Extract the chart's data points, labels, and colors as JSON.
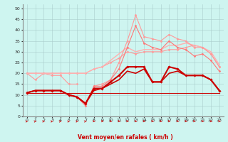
{
  "x": [
    0,
    1,
    2,
    3,
    4,
    5,
    6,
    7,
    8,
    9,
    10,
    11,
    12,
    13,
    14,
    15,
    16,
    17,
    18,
    19,
    20,
    21,
    22,
    23
  ],
  "background_color": "#cef5f0",
  "grid_color": "#aacccc",
  "xlabel": "Vent moyen/en rafales ( km/h )",
  "xlabel_color": "#cc0000",
  "ylim": [
    0,
    52
  ],
  "xlim": [
    -0.5,
    23.5
  ],
  "yticks": [
    0,
    5,
    10,
    15,
    20,
    25,
    30,
    35,
    40,
    45,
    50
  ],
  "arrow_angles": [
    45,
    45,
    45,
    45,
    45,
    45,
    45,
    45,
    0,
    0,
    0,
    0,
    0,
    0,
    0,
    0,
    0,
    0,
    0,
    0,
    0,
    0,
    0,
    0
  ],
  "series": [
    {
      "values": [
        20,
        17,
        20,
        19,
        19,
        15,
        15,
        null,
        null,
        null,
        null,
        null,
        null,
        null,
        null,
        null,
        null,
        null,
        null,
        null,
        null,
        null,
        null,
        null
      ],
      "color": "#ff9999",
      "linewidth": 0.8,
      "marker": "D",
      "markersize": 1.5
    },
    {
      "values": [
        20,
        20,
        20,
        20,
        20,
        20,
        20,
        20,
        22,
        23,
        25,
        27,
        30,
        29,
        30,
        30,
        30,
        31,
        31,
        32,
        33,
        32,
        29,
        23
      ],
      "color": "#ff9999",
      "linewidth": 0.8,
      "marker": "D",
      "markersize": 1.5
    },
    {
      "values": [
        20,
        20,
        20,
        20,
        20,
        20,
        20,
        20,
        22,
        23,
        26,
        29,
        32,
        30,
        31,
        31,
        31,
        33,
        33,
        34,
        33,
        32,
        30,
        24
      ],
      "color": "#ffb0b0",
      "linewidth": 1.0,
      "marker": null,
      "markersize": 0
    },
    {
      "values": [
        11,
        12,
        12,
        12,
        12,
        10,
        9,
        5,
        14,
        15,
        17,
        25,
        35,
        47,
        37,
        36,
        35,
        38,
        36,
        35,
        32,
        32,
        29,
        23
      ],
      "color": "#ff9999",
      "linewidth": 0.8,
      "marker": "D",
      "markersize": 1.5
    },
    {
      "values": [
        11,
        12,
        12,
        12,
        12,
        10,
        9,
        5,
        14,
        14,
        17,
        22,
        32,
        42,
        34,
        32,
        31,
        35,
        32,
        31,
        28,
        29,
        26,
        21
      ],
      "color": "#ff7777",
      "linewidth": 0.8,
      "marker": "D",
      "markersize": 1.5
    },
    {
      "values": [
        11,
        12,
        12,
        12,
        12,
        10,
        9,
        6,
        13,
        13,
        16,
        19,
        23,
        23,
        23,
        16,
        16,
        23,
        22,
        19,
        19,
        19,
        17,
        12
      ],
      "color": "#cc0000",
      "linewidth": 1.5,
      "marker": "D",
      "markersize": 1.8
    },
    {
      "values": [
        11,
        12,
        12,
        12,
        12,
        10,
        9,
        6,
        12,
        13,
        15,
        17,
        21,
        20,
        22,
        16,
        16,
        20,
        21,
        19,
        19,
        19,
        17,
        12
      ],
      "color": "#cc0000",
      "linewidth": 1.2,
      "marker": null,
      "markersize": 0
    },
    {
      "values": [
        11,
        11,
        11,
        11,
        11,
        11,
        11,
        11,
        11,
        11,
        11,
        11,
        11,
        11,
        11,
        11,
        11,
        11,
        11,
        11,
        11,
        11,
        11,
        11
      ],
      "color": "#cc0000",
      "linewidth": 0.8,
      "marker": null,
      "markersize": 0
    }
  ]
}
